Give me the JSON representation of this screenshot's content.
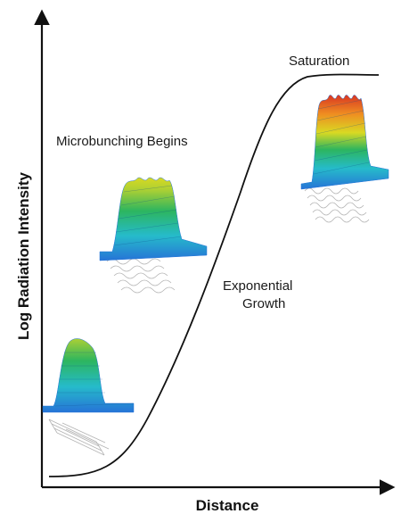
{
  "axes": {
    "x_label": "Distance",
    "y_label": "Log Radiation Intensity"
  },
  "annotations": {
    "saturation": "Saturation",
    "microbunching": "Microbunching Begins",
    "exponential_line1": "Exponential",
    "exponential_line2": "Growth"
  },
  "colors": {
    "curve": "#111111",
    "axis": "#111111",
    "plot_blue": "#1f6fd6",
    "plot_cyan": "#1fb9c9",
    "plot_green": "#27b35a",
    "plot_yellow": "#d8d81c",
    "plot_orange": "#ef8a1a",
    "plot_red": "#d8301c",
    "bunch_grey": "#b3b3b3"
  },
  "icons": [
    "beam-profile-low",
    "beam-profile-mid",
    "beam-profile-high"
  ]
}
